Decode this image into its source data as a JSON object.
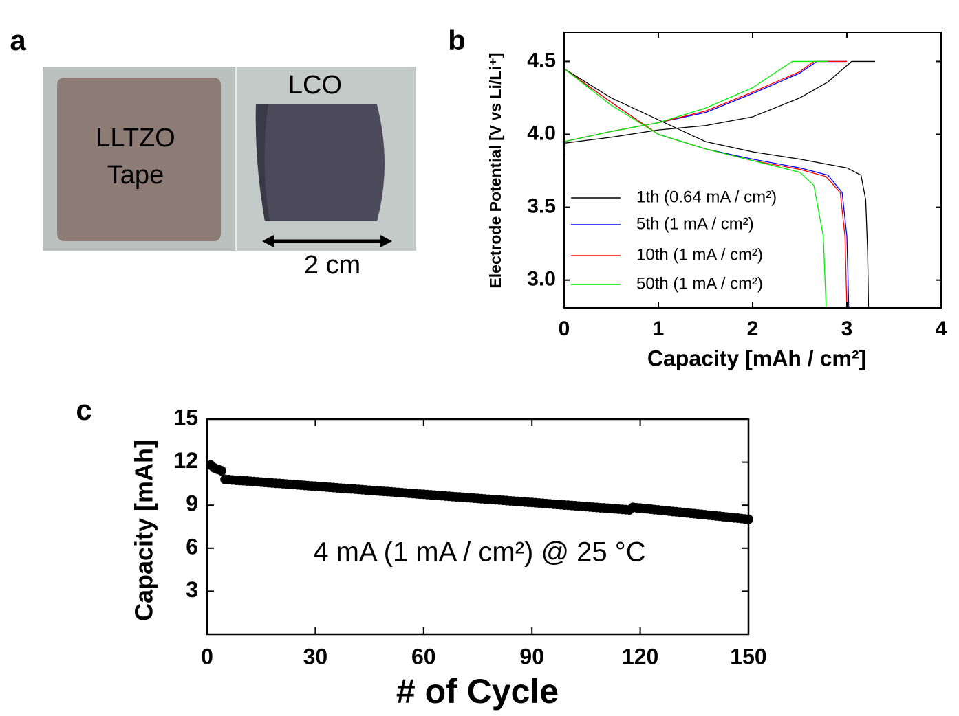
{
  "photo": {
    "panel_label": "a",
    "left_label_lines": [
      "LLTZO",
      "Tape"
    ],
    "right_label": "LCO",
    "scale_label": "2 cm"
  },
  "chart_data": [
    {
      "type": "line",
      "panel_label": "b",
      "x_label": "Capacity [mAh / cm²]",
      "y_label": "Electrode Potential [V vs Li/Li⁺]",
      "xlim": [
        0,
        4
      ],
      "xticks": [
        0,
        1,
        2,
        3,
        4
      ],
      "ylim": [
        2.81,
        4.7
      ],
      "yticks": [
        {
          "value": 3,
          "label": "3.0"
        },
        3.5,
        {
          "value": 4,
          "label": "4.0"
        },
        4.5
      ],
      "legend": "lower left",
      "series": [
        {
          "name": "1th (0.64 mA / cm²)",
          "color": "#000000",
          "charge": {
            "x": [
              0,
              0.01,
              0.5,
              1,
              1.5,
              2,
              2.5,
              2.8,
              3.05,
              3.3
            ],
            "values": [
              3.82,
              3.94,
              3.98,
              4.03,
              4.06,
              4.12,
              4.25,
              4.36,
              4.5,
              4.5
            ]
          },
          "discharge": {
            "x": [
              0,
              0.5,
              1,
              1.5,
              2,
              2.5,
              3,
              3.15,
              3.2,
              3.22,
              3.23
            ],
            "values": [
              4.45,
              4.25,
              4.1,
              3.95,
              3.88,
              3.83,
              3.77,
              3.72,
              3.55,
              3.2,
              2.81
            ]
          }
        },
        {
          "name": "5th (1 mA / cm²)",
          "color": "#0000ff",
          "charge": {
            "x": [
              0,
              0.5,
              1,
              1.5,
              2,
              2.5,
              2.68,
              3.0
            ],
            "values": [
              3.95,
              4.02,
              4.08,
              4.15,
              4.28,
              4.42,
              4.5,
              4.5
            ]
          },
          "discharge": {
            "x": [
              0,
              0.5,
              1,
              1.5,
              2,
              2.5,
              2.8,
              2.95,
              3.0,
              3.02
            ],
            "values": [
              4.45,
              4.22,
              4.0,
              3.9,
              3.83,
              3.77,
              3.72,
              3.6,
              3.3,
              2.81
            ]
          }
        },
        {
          "name": "10th (1 mA / cm²)",
          "color": "#ff0000",
          "charge": {
            "x": [
              0,
              0.5,
              1,
              1.5,
              2,
              2.5,
              2.65,
              3.0
            ],
            "values": [
              3.95,
              4.02,
              4.08,
              4.16,
              4.29,
              4.43,
              4.5,
              4.5
            ]
          },
          "discharge": {
            "x": [
              0,
              0.5,
              1,
              1.5,
              2,
              2.5,
              2.78,
              2.93,
              2.98,
              3.0
            ],
            "values": [
              4.45,
              4.22,
              4.0,
              3.9,
              3.82,
              3.76,
              3.71,
              3.6,
              3.3,
              2.81
            ]
          }
        },
        {
          "name": "50th (1 mA / cm²)",
          "color": "#00ee00",
          "charge": {
            "x": [
              0,
              0.5,
              1,
              1.5,
              2,
              2.42,
              2.8
            ],
            "values": [
              3.95,
              4.02,
              4.08,
              4.18,
              4.32,
              4.5,
              4.5
            ]
          },
          "discharge": {
            "x": [
              0,
              0.5,
              1,
              1.5,
              2,
              2.5,
              2.65,
              2.75,
              2.78
            ],
            "values": [
              4.45,
              4.2,
              4.0,
              3.9,
              3.82,
              3.74,
              3.65,
              3.3,
              2.81
            ]
          }
        }
      ]
    },
    {
      "type": "scatter",
      "panel_label": "c",
      "x_label": "# of Cycle",
      "y_label": "Capacity [mAh]",
      "annotation": "4 mA (1 mA / cm²) @ 25 °C",
      "xlim": [
        0,
        150
      ],
      "xticks": [
        0,
        30,
        60,
        90,
        120,
        150
      ],
      "ylim": [
        0,
        15
      ],
      "yticks": [
        3,
        6,
        9,
        12,
        15
      ],
      "color": "#000000",
      "x": [
        1,
        2,
        3,
        4,
        5,
        6,
        7,
        8,
        9,
        10,
        11,
        12,
        13,
        14,
        15,
        16,
        17,
        18,
        19,
        20,
        21,
        22,
        23,
        24,
        25,
        26,
        27,
        28,
        29,
        30,
        31,
        32,
        33,
        34,
        35,
        36,
        37,
        38,
        39,
        40,
        41,
        42,
        43,
        44,
        45,
        46,
        47,
        48,
        49,
        50,
        51,
        52,
        53,
        54,
        55,
        56,
        57,
        58,
        59,
        60,
        61,
        62,
        63,
        64,
        65,
        66,
        67,
        68,
        69,
        70,
        71,
        72,
        73,
        74,
        75,
        76,
        77,
        78,
        79,
        80,
        81,
        82,
        83,
        84,
        85,
        86,
        87,
        88,
        89,
        90,
        91,
        92,
        93,
        94,
        95,
        96,
        97,
        98,
        99,
        100,
        101,
        102,
        103,
        104,
        105,
        106,
        107,
        108,
        109,
        110,
        111,
        112,
        113,
        114,
        115,
        116,
        117,
        118,
        119,
        120,
        121,
        122,
        123,
        124,
        125,
        126,
        127,
        128,
        129,
        130,
        131,
        132,
        133,
        134,
        135,
        136,
        137,
        138,
        139,
        140,
        141,
        142,
        143,
        144,
        145,
        146,
        147,
        148,
        149,
        150
      ],
      "values": [
        11.8,
        11.6,
        11.5,
        11.4,
        10.8,
        10.78,
        10.76,
        10.74,
        10.72,
        10.71,
        10.69,
        10.67,
        10.65,
        10.63,
        10.61,
        10.59,
        10.57,
        10.55,
        10.53,
        10.52,
        10.5,
        10.48,
        10.46,
        10.44,
        10.42,
        10.4,
        10.38,
        10.36,
        10.34,
        10.33,
        10.31,
        10.29,
        10.27,
        10.25,
        10.23,
        10.21,
        10.19,
        10.17,
        10.15,
        10.14,
        10.12,
        10.1,
        10.08,
        10.06,
        10.04,
        10.02,
        10.0,
        9.98,
        9.96,
        9.95,
        9.93,
        9.91,
        9.89,
        9.87,
        9.85,
        9.83,
        9.81,
        9.79,
        9.77,
        9.76,
        9.74,
        9.72,
        9.7,
        9.68,
        9.66,
        9.64,
        9.62,
        9.6,
        9.58,
        9.57,
        9.55,
        9.53,
        9.51,
        9.49,
        9.47,
        9.45,
        9.43,
        9.41,
        9.39,
        9.38,
        9.36,
        9.34,
        9.32,
        9.3,
        9.28,
        9.26,
        9.24,
        9.22,
        9.2,
        9.19,
        9.17,
        9.15,
        9.13,
        9.11,
        9.09,
        9.07,
        9.05,
        9.03,
        9.01,
        9.0,
        8.98,
        8.96,
        8.94,
        8.92,
        8.9,
        8.88,
        8.86,
        8.84,
        8.82,
        8.81,
        8.79,
        8.77,
        8.75,
        8.73,
        8.71,
        8.69,
        8.67,
        8.85,
        8.82,
        8.8,
        8.77,
        8.75,
        8.72,
        8.69,
        8.67,
        8.64,
        8.62,
        8.59,
        8.56,
        8.54,
        8.51,
        8.49,
        8.46,
        8.43,
        8.41,
        8.38,
        8.36,
        8.33,
        8.3,
        8.28,
        8.25,
        8.23,
        8.2,
        8.17,
        8.15,
        8.12,
        8.1,
        8.07,
        8.04,
        8.02
      ]
    }
  ]
}
